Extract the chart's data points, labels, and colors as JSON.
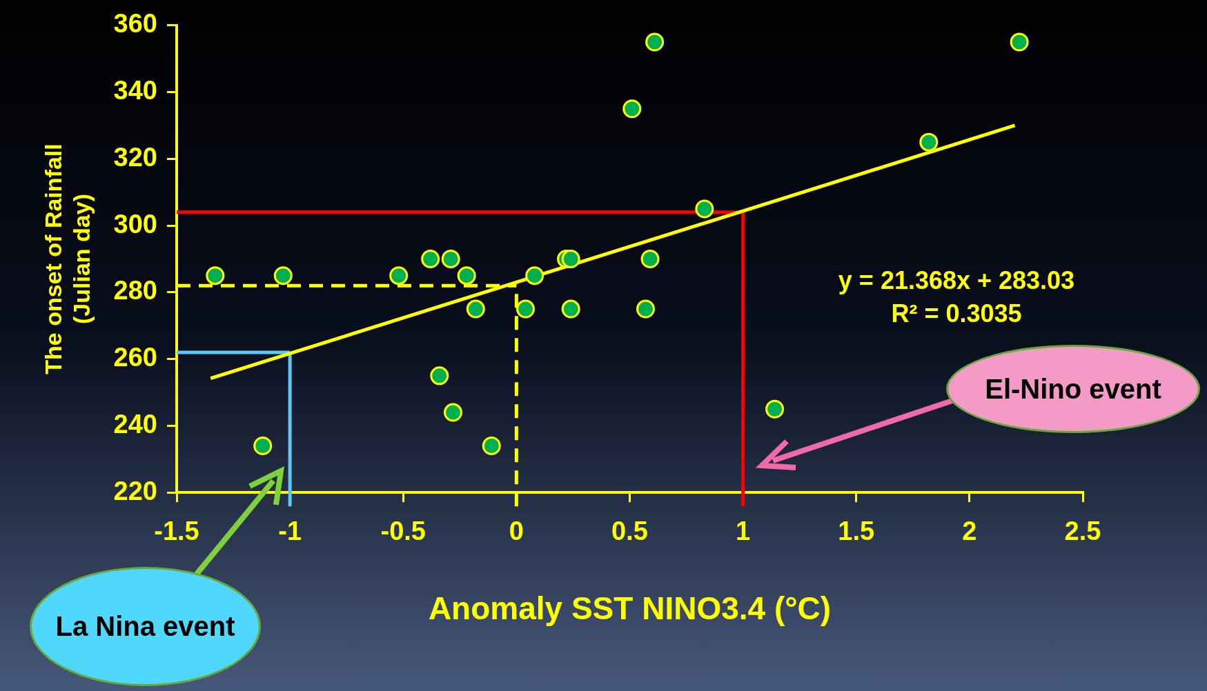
{
  "chart_data": {
    "type": "scatter",
    "xlabel": "Anomaly SST NINO3.4 (°C)",
    "ylabel": "The onset of Rainfall\n(Julian day)",
    "xlim": [
      -1.5,
      2.5
    ],
    "xticks": [
      -1.5,
      -1,
      -0.5,
      0,
      0.5,
      1,
      1.5,
      2,
      2.5
    ],
    "ylim": [
      220,
      360
    ],
    "yticks": [
      220,
      240,
      260,
      280,
      300,
      320,
      340,
      360
    ],
    "grid": false,
    "legend": false,
    "series": [
      {
        "marker": "circle",
        "color": "#00b050",
        "x": [
          -1.33,
          -1.03,
          -1.12,
          -0.52,
          -0.38,
          -0.29,
          -0.22,
          -0.18,
          -0.34,
          -0.28,
          -0.11,
          0.04,
          0.08,
          0.22,
          0.24,
          0.24,
          0.51,
          0.61,
          0.59,
          0.57,
          0.83,
          1.14,
          1.82,
          2.22
        ],
        "values": [
          285,
          285,
          234,
          285,
          290,
          290,
          285,
          275,
          255,
          244,
          234,
          275,
          285,
          290,
          290,
          275,
          335,
          355,
          290,
          275,
          305,
          245,
          325,
          355
        ]
      },
      {
        "type": "line",
        "color": "#ffff00",
        "x": [
          -1.35,
          2.2
        ],
        "values": [
          254.2,
          330.0
        ]
      }
    ],
    "ref_lines": [
      {
        "axis": "y",
        "value": 304,
        "color": "#ff0000",
        "line_style": "solid"
      },
      {
        "axis": "x",
        "value": 1,
        "color": "#ff0000",
        "line_style": "solid"
      },
      {
        "axis": "y",
        "value": 262,
        "color": "#5bc8f5",
        "line_style": "solid"
      },
      {
        "axis": "x",
        "value": -1,
        "color": "#5bc8f5",
        "line_style": "solid"
      },
      {
        "axis": "y",
        "value": 282,
        "color": "#ffff00",
        "line_style": "dashed"
      },
      {
        "axis": "x",
        "value": 0,
        "color": "#ffff00",
        "line_style": "dashed"
      }
    ],
    "annotations": [
      "y = 21.368x  + 283.03",
      "R² = 0.3035",
      "El-Nino event",
      "La Nina event"
    ]
  }
}
